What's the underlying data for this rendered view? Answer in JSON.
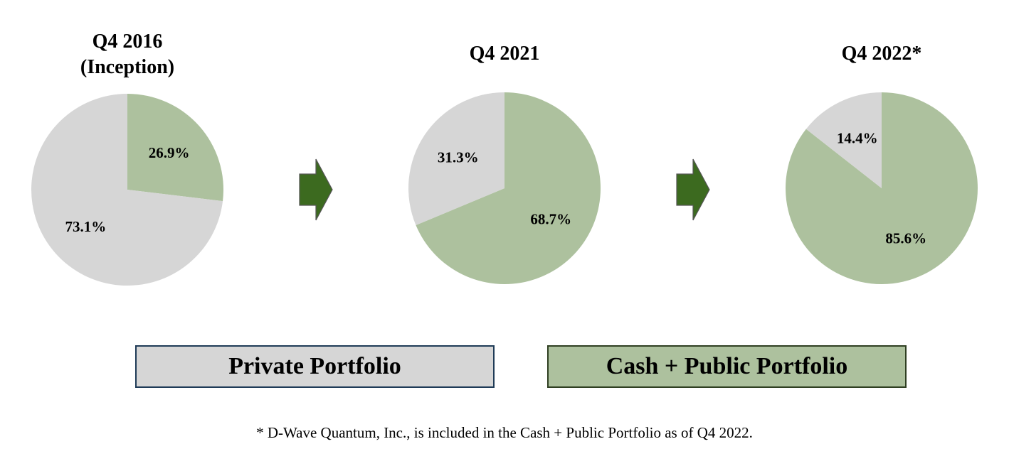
{
  "colors": {
    "private": "#d6d6d6",
    "public": "#adc19e",
    "arrow_fill": "#3c6a1f",
    "arrow_stroke": "#555555"
  },
  "chart_data": [
    {
      "type": "pie",
      "title": "Q4 2016",
      "subtitle": "(Inception)",
      "slices": [
        {
          "series": "private",
          "value": 73.1,
          "label": "73.1%"
        },
        {
          "series": "public",
          "value": 26.9,
          "label": "26.9%"
        }
      ]
    },
    {
      "type": "pie",
      "title": "Q4 2021",
      "slices": [
        {
          "series": "private",
          "value": 31.3,
          "label": "31.3%"
        },
        {
          "series": "public",
          "value": 68.7,
          "label": "68.7%"
        }
      ]
    },
    {
      "type": "pie",
      "title": "Q4 2022*",
      "slices": [
        {
          "series": "private",
          "value": 14.4,
          "label": "14.4%"
        },
        {
          "series": "public",
          "value": 85.6,
          "label": "85.6%"
        }
      ]
    }
  ],
  "legend": {
    "private_label": "Private Portfolio",
    "public_label": "Cash + Public Portfolio"
  },
  "footnote": "* D-Wave Quantum, Inc., is included in the Cash + Public Portfolio as of Q4 2022."
}
